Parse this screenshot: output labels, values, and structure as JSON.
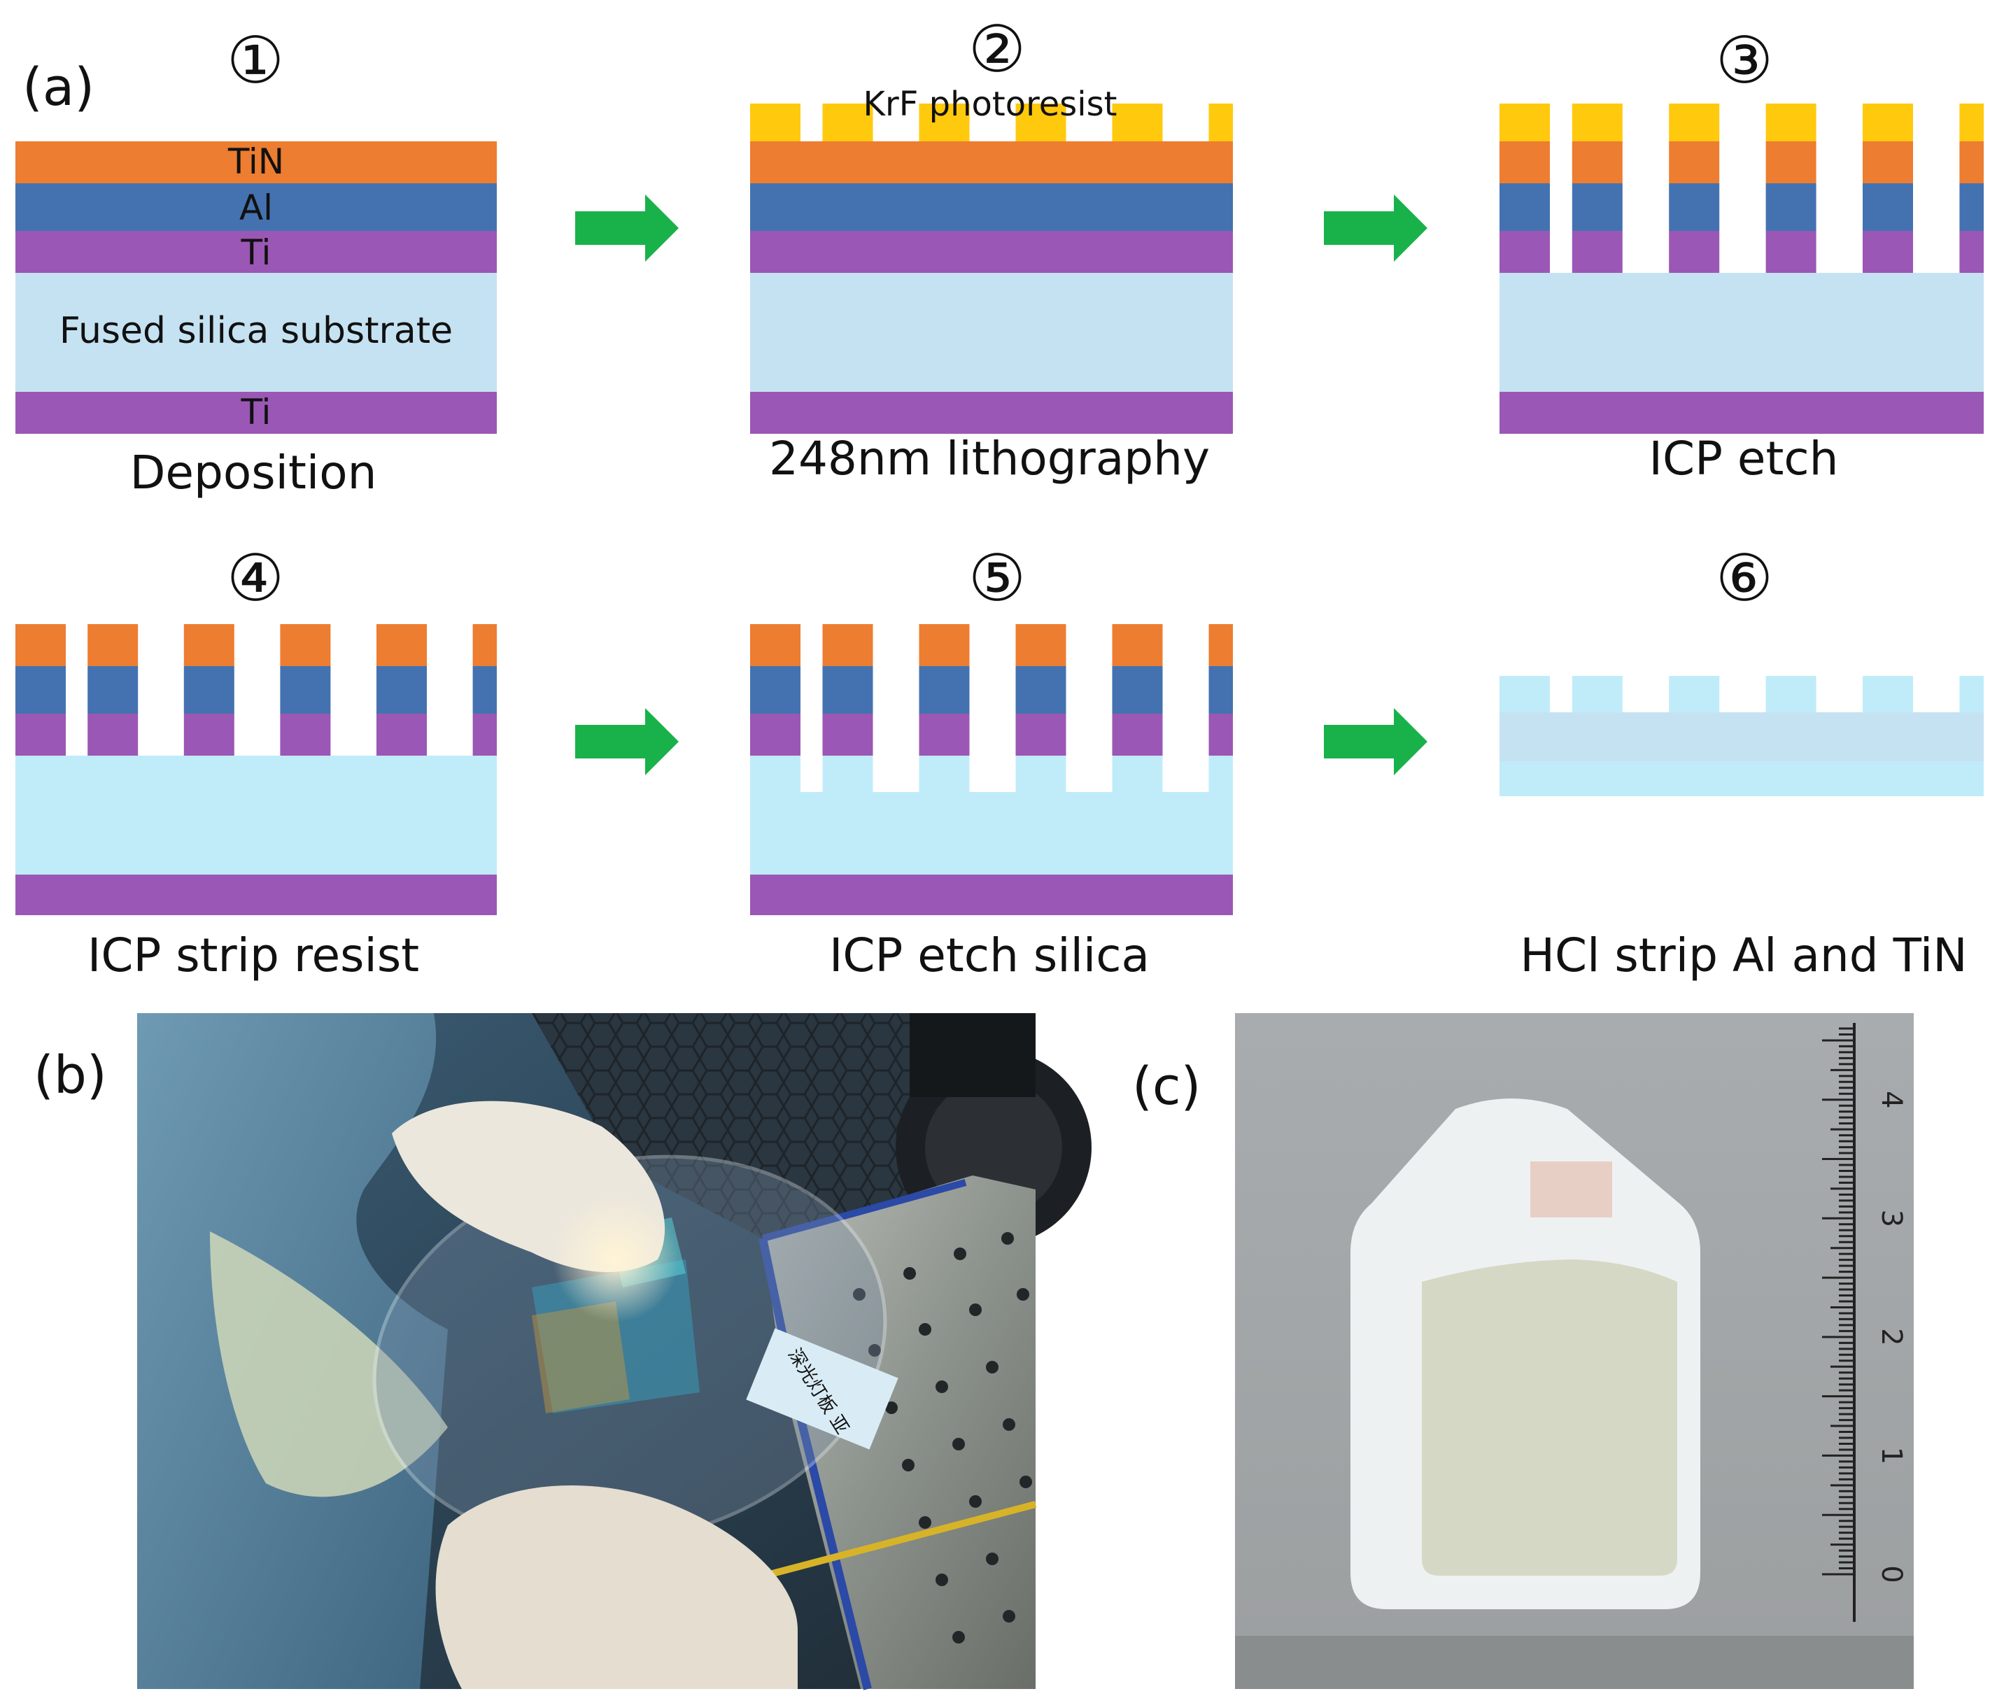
{
  "panel_labels": {
    "a": "(a)",
    "b": "(b)",
    "c": "(c)"
  },
  "steps": [
    {
      "number": "①",
      "caption": "Deposition"
    },
    {
      "number": "②",
      "caption": "248nm lithography"
    },
    {
      "number": "③",
      "caption": "ICP etch"
    },
    {
      "number": "④",
      "caption": "ICP strip resist"
    },
    {
      "number": "⑤",
      "caption": "ICP etch silica"
    },
    {
      "number": "⑥",
      "caption": "HCl strip Al and TiN"
    }
  ],
  "layer_labels": {
    "tin": "TiN",
    "al": "Al",
    "ti_top": "Ti",
    "substrate": "Fused silica substrate",
    "ti_bottom": "Ti",
    "photoresist": "KrF photoresist"
  },
  "ruler": {
    "tick_labels": [
      "4",
      "3",
      "2",
      "1",
      "0"
    ]
  },
  "photo_b": {
    "label_text": "深光灯板 亚"
  },
  "colors": {
    "tin": "#ED7D31",
    "al": "#4472B0",
    "ti": "#9B57B5",
    "silica": "#C5E2F2",
    "silica_etched": "#C0ECFA",
    "photoresist": "#FFC90E",
    "arrow": "#19B24A"
  }
}
